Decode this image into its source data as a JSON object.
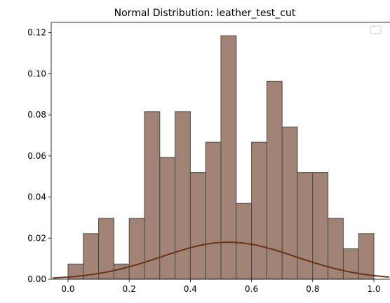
{
  "chart_data": {
    "type": "bar",
    "title": "Normal Distribution: leather_test_cut",
    "xlabel": "",
    "ylabel": "",
    "xlim": [
      -0.055,
      1.055
    ],
    "ylim": [
      0,
      0.125
    ],
    "x_ticks": [
      0.0,
      0.2,
      0.4,
      0.6,
      0.8,
      1.0
    ],
    "x_tick_labels": [
      "0.0",
      "0.2",
      "0.4",
      "0.6",
      "0.8",
      "1.0"
    ],
    "y_ticks": [
      0.0,
      0.02,
      0.04,
      0.06,
      0.08,
      0.1,
      0.12
    ],
    "y_tick_labels": [
      "0.00",
      "0.02",
      "0.04",
      "0.06",
      "0.08",
      "0.10",
      "0.12"
    ],
    "grid": false,
    "legend": {
      "placement": "top-right",
      "entries": []
    },
    "histogram": {
      "bin_width": 0.05,
      "bin_starts": [
        0.0,
        0.05,
        0.1,
        0.15,
        0.2,
        0.25,
        0.3,
        0.35,
        0.4,
        0.45,
        0.5,
        0.55,
        0.6,
        0.65,
        0.7,
        0.75,
        0.8,
        0.85,
        0.9,
        0.95
      ],
      "values": [
        0.0074,
        0.0222,
        0.0296,
        0.0074,
        0.0296,
        0.0815,
        0.0593,
        0.0815,
        0.0519,
        0.0667,
        0.1185,
        0.037,
        0.0667,
        0.0963,
        0.0741,
        0.0519,
        0.0519,
        0.0296,
        0.0148,
        0.0222
      ],
      "fill_color": "#a08374",
      "edge_color": "#4a4a4a"
    },
    "curve": {
      "type": "normal-pdf",
      "mean": 0.525,
      "std": 0.22,
      "peak": 0.018,
      "x_range": [
        -0.05,
        1.05
      ],
      "color": "#6b3218"
    }
  }
}
